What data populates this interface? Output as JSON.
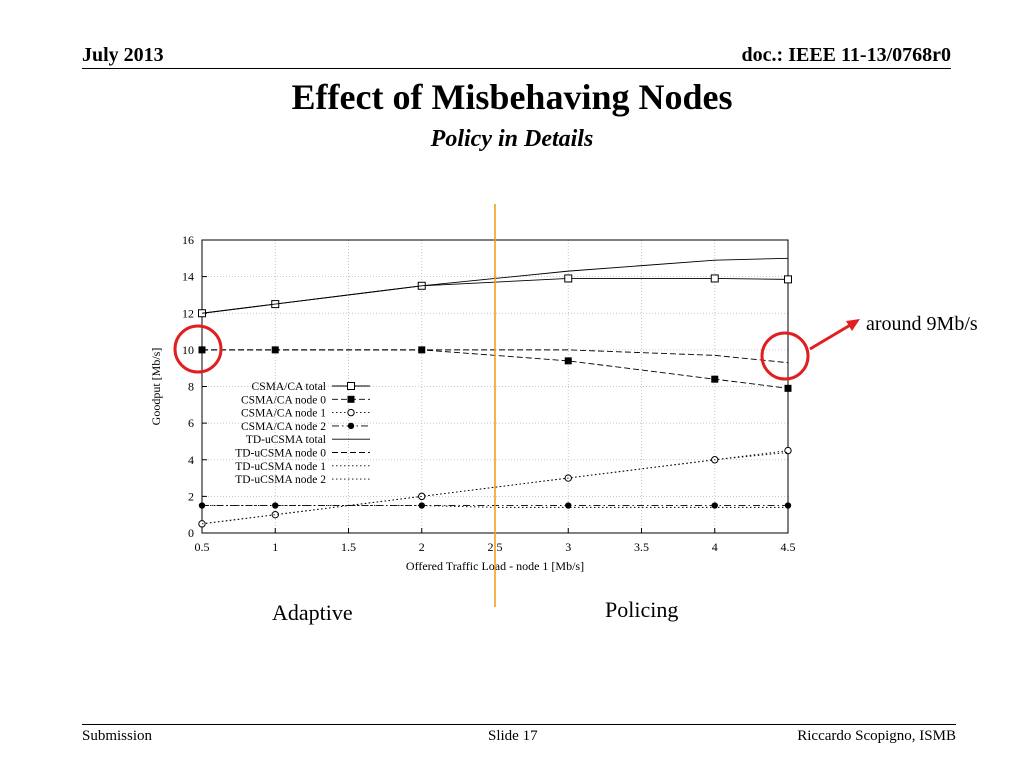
{
  "header": {
    "date": "July 2013",
    "doc": "doc.: IEEE 11-13/0768r0"
  },
  "slide": {
    "title": "Effect of Misbehaving Nodes",
    "subtitle": "Policy in Details"
  },
  "regions": {
    "left_label": "Adaptive",
    "right_label": "Policing",
    "divider_color": "#f0a020"
  },
  "callout": {
    "text": "around 9Mb/s",
    "color": "#e02020"
  },
  "footer": {
    "left": "Submission",
    "center": "Slide 17",
    "right": "Riccardo Scopigno, ISMB"
  },
  "chart_data": {
    "type": "line",
    "xlabel": "Offered Traffic Load - node 1 [Mb/s]",
    "ylabel": "Goodput [Mb/s]",
    "xlim": [
      0.5,
      4.5
    ],
    "ylim": [
      0,
      16
    ],
    "xticks": [
      0.5,
      1,
      1.5,
      2,
      2.5,
      3,
      3.5,
      4,
      4.5
    ],
    "xtick_labels": [
      "0.5",
      "1",
      "1.5",
      "2",
      "2.5",
      "3",
      "3.5",
      "4",
      "4.5"
    ],
    "yticks": [
      0,
      2,
      4,
      6,
      8,
      10,
      12,
      14,
      16
    ],
    "ytick_labels": [
      "0",
      "2",
      "4",
      "6",
      "8",
      "10",
      "12",
      "14",
      "16"
    ],
    "grid": true,
    "divider_x": 2.5,
    "legend_position": "center-left",
    "series": [
      {
        "name": "CSMA/CA total",
        "x": [
          0.5,
          1,
          2,
          3,
          4,
          4.5
        ],
        "y": [
          12.0,
          12.5,
          13.5,
          13.9,
          13.9,
          13.85
        ],
        "dash": "solid",
        "marker": "open-square"
      },
      {
        "name": "CSMA/CA node 0",
        "x": [
          0.5,
          1,
          2,
          3,
          4,
          4.5
        ],
        "y": [
          10.0,
          10.0,
          10.0,
          9.4,
          8.4,
          7.9
        ],
        "dash": "dash",
        "marker": "filled-square"
      },
      {
        "name": "CSMA/CA node 1",
        "x": [
          0.5,
          1,
          2,
          3,
          4,
          4.5
        ],
        "y": [
          0.5,
          1.0,
          2.0,
          3.0,
          4.0,
          4.5
        ],
        "dash": "dot",
        "marker": "open-circle"
      },
      {
        "name": "CSMA/CA node 2",
        "x": [
          0.5,
          1,
          2,
          3,
          4,
          4.5
        ],
        "y": [
          1.5,
          1.5,
          1.5,
          1.5,
          1.5,
          1.5
        ],
        "dash": "dashdot",
        "marker": "filled-circle"
      },
      {
        "name": "TD-uCSMA total",
        "x": [
          0.5,
          1,
          2,
          2.5,
          3,
          4,
          4.5
        ],
        "y": [
          12.0,
          12.5,
          13.5,
          13.9,
          14.3,
          14.9,
          15.0
        ],
        "dash": "solid",
        "marker": "none"
      },
      {
        "name": "TD-uCSMA node 0",
        "x": [
          0.5,
          1,
          2,
          2.5,
          3,
          4,
          4.5
        ],
        "y": [
          10.0,
          10.0,
          10.0,
          10.0,
          10.0,
          9.7,
          9.3
        ],
        "dash": "dash",
        "marker": "none"
      },
      {
        "name": "TD-uCSMA node 1",
        "x": [
          0.5,
          1,
          2,
          2.5,
          3,
          4,
          4.5
        ],
        "y": [
          0.5,
          1.0,
          2.0,
          2.5,
          3.0,
          4.0,
          4.4
        ],
        "dash": "dot",
        "marker": "none"
      },
      {
        "name": "TD-uCSMA node 2",
        "x": [
          0.5,
          1,
          2,
          2.5,
          3,
          4,
          4.5
        ],
        "y": [
          1.5,
          1.5,
          1.5,
          1.4,
          1.4,
          1.4,
          1.4
        ],
        "dash": "dot",
        "marker": "none"
      }
    ]
  }
}
